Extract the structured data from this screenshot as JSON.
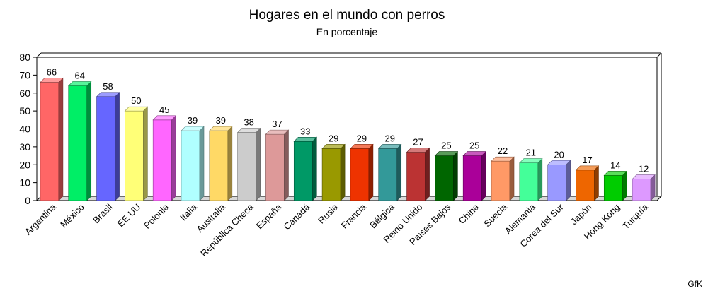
{
  "chart_data": {
    "type": "bar",
    "title": "Hogares en el mundo con perros",
    "subtitle": "En porcentaje",
    "source": "GfK",
    "ylim": [
      0,
      80
    ],
    "yticks": [
      0,
      10,
      20,
      30,
      40,
      50,
      60,
      70,
      80
    ],
    "grid": false,
    "legend": "none",
    "categories": [
      "Argentina",
      "México",
      "Brasil",
      "EE UU",
      "Polonia",
      "Italia",
      "Australia",
      "República Checa",
      "España",
      "Canadá",
      "Rusia",
      "Francia",
      "Bélgica",
      "Reino Unido",
      "Países Bajos",
      "China",
      "Suecia",
      "Alemania",
      "Corea del Sur",
      "Japón",
      "Hong Kong",
      "Turquía"
    ],
    "values": [
      66,
      64,
      58,
      50,
      45,
      39,
      39,
      38,
      37,
      33,
      29,
      29,
      29,
      27,
      25,
      25,
      22,
      21,
      20,
      17,
      14,
      12
    ],
    "colors": [
      "#ff6666",
      "#00ee66",
      "#6666ff",
      "#ffff77",
      "#ff66ff",
      "#b0ffff",
      "#ffd966",
      "#cccccc",
      "#dd9999",
      "#009966",
      "#999900",
      "#ee3300",
      "#339999",
      "#bb3333",
      "#006600",
      "#aa0099",
      "#ff9966",
      "#44ff99",
      "#9999ff",
      "#ee6600",
      "#00cc00",
      "#dd99ff"
    ]
  }
}
